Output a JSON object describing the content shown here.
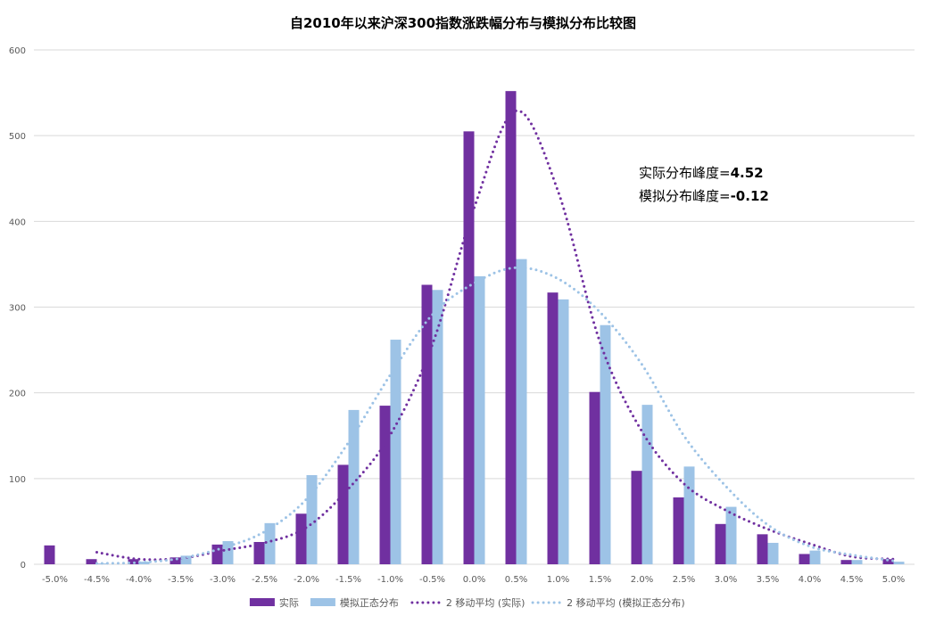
{
  "chart_data": {
    "type": "bar",
    "title": "自2010年以来沪深300指数涨跌幅分布与模拟分布比较图",
    "xlabel": "",
    "ylabel": "",
    "ylim": [
      0,
      600
    ],
    "yticks": [
      "0",
      "100",
      "200",
      "300",
      "400",
      "500",
      "600"
    ],
    "categories": [
      "-5.0%",
      "-4.5%",
      "-4.0%",
      "-3.5%",
      "-3.0%",
      "-2.5%",
      "-2.0%",
      "-1.5%",
      "-1.0%",
      "-0.5%",
      "0.0%",
      "0.5%",
      "1.0%",
      "1.5%",
      "2.0%",
      "2.5%",
      "3.0%",
      "3.5%",
      "4.0%",
      "4.5%",
      "5.0%"
    ],
    "grid": true,
    "legend_position": "bottom",
    "series": [
      {
        "name": "实际",
        "kind": "bar",
        "color": "#7030A0",
        "values": [
          22,
          6,
          6,
          8,
          23,
          26,
          59,
          116,
          185,
          326,
          505,
          552,
          317,
          201,
          109,
          78,
          47,
          35,
          12,
          5,
          6
        ]
      },
      {
        "name": "模拟正态分布",
        "kind": "bar",
        "color": "#9DC3E6",
        "values": [
          0,
          1,
          3,
          10,
          27,
          48,
          104,
          180,
          262,
          320,
          336,
          356,
          309,
          279,
          186,
          114,
          67,
          25,
          16,
          5,
          3
        ]
      },
      {
        "name": "2 移动平均 (实际)",
        "kind": "dotted-line",
        "color": "#7030A0",
        "values": [
          null,
          14,
          6,
          7,
          16,
          25,
          43,
          88,
          151,
          256,
          416,
          529,
          435,
          259,
          155,
          94,
          63,
          41,
          24,
          9,
          6
        ]
      },
      {
        "name": "2 移动平均 (模拟正态分布)",
        "kind": "dotted-line",
        "color": "#9DC3E6",
        "values": [
          null,
          1,
          2,
          7,
          19,
          38,
          76,
          142,
          221,
          291,
          328,
          346,
          333,
          294,
          233,
          150,
          91,
          46,
          21,
          11,
          4
        ]
      }
    ],
    "annotations": {
      "actual_kurtosis_label": "实际分布峰度=",
      "actual_kurtosis_value": "4.52",
      "simulated_kurtosis_label": "模拟分布峰度=",
      "simulated_kurtosis_value": "-0.12"
    }
  }
}
